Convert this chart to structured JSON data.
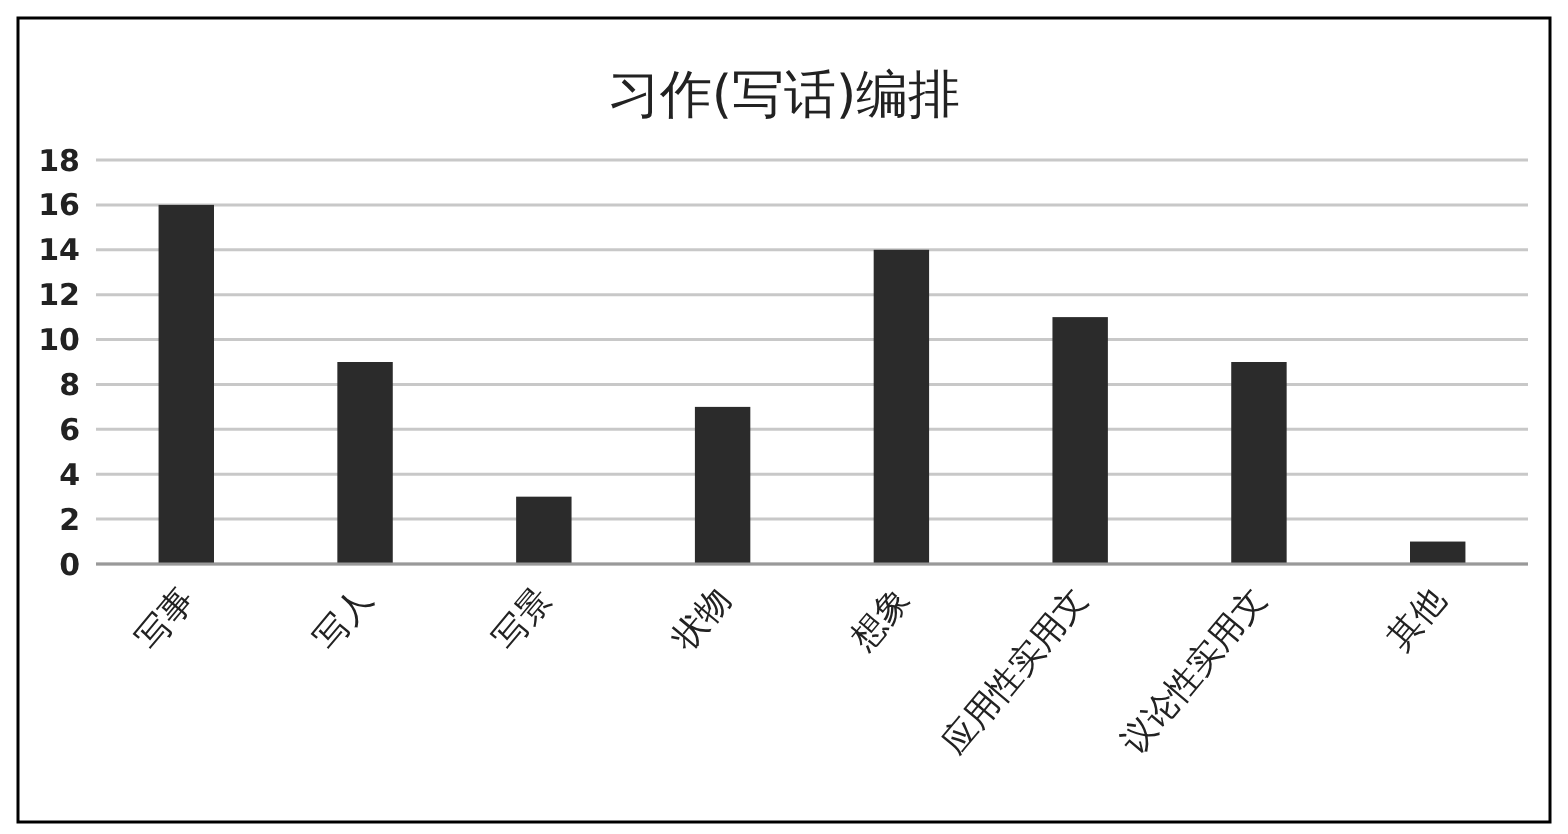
{
  "chart_data": {
    "type": "bar",
    "title": "习作(写话)编排",
    "categories": [
      "写事",
      "写人",
      "写景",
      "状物",
      "想象",
      "应用性实用文",
      "议论性实用文",
      "其他"
    ],
    "values": [
      16,
      9,
      3,
      7,
      14,
      11,
      9,
      1
    ],
    "color": "#2b2b2b",
    "ylim": [
      0,
      18
    ],
    "yticks": [
      0,
      2,
      4,
      6,
      8,
      10,
      12,
      14,
      16,
      18
    ],
    "grid": "y"
  }
}
